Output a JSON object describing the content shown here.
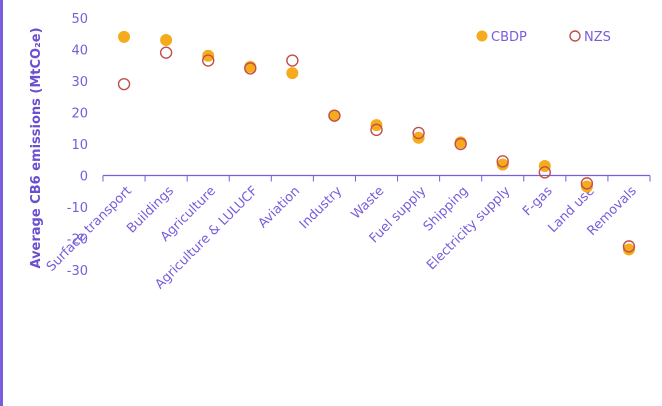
{
  "chart_data": {
    "type": "scatter",
    "ylabel": "Average CB6 emissions (MtCO₂e)",
    "ylim": [
      -30,
      50
    ],
    "yticks": [
      50,
      40,
      30,
      20,
      10,
      0,
      -10,
      -20,
      -30
    ],
    "grid": false,
    "legend_position": "top-right",
    "categories": [
      "Surface transport",
      "Buildings",
      "Agriculture",
      "Agriculture & LULUCF",
      "Aviation",
      "Industry",
      "Waste",
      "Fuel supply",
      "Shipping",
      "Electricity supply",
      "F-gas",
      "Land use",
      "Removals"
    ],
    "series": [
      {
        "name": "CBDP",
        "marker": "filled-circle",
        "color": "#f5ab1b",
        "values": [
          44,
          43,
          38,
          34.5,
          32.5,
          19,
          16,
          12,
          10.5,
          3.5,
          3,
          -3.5,
          -23.5
        ]
      },
      {
        "name": "NZS",
        "marker": "open-circle",
        "color": "#c0504d",
        "values": [
          29,
          39,
          36.5,
          34,
          36.5,
          19,
          14.5,
          13.5,
          10,
          4.5,
          1,
          -2.5,
          -22.5
        ]
      }
    ]
  },
  "colors": {
    "axis": "#7a5cdc",
    "label": "#6b4fd0",
    "cbdp": "#f5ab1b",
    "nzs": "#c0504d"
  }
}
